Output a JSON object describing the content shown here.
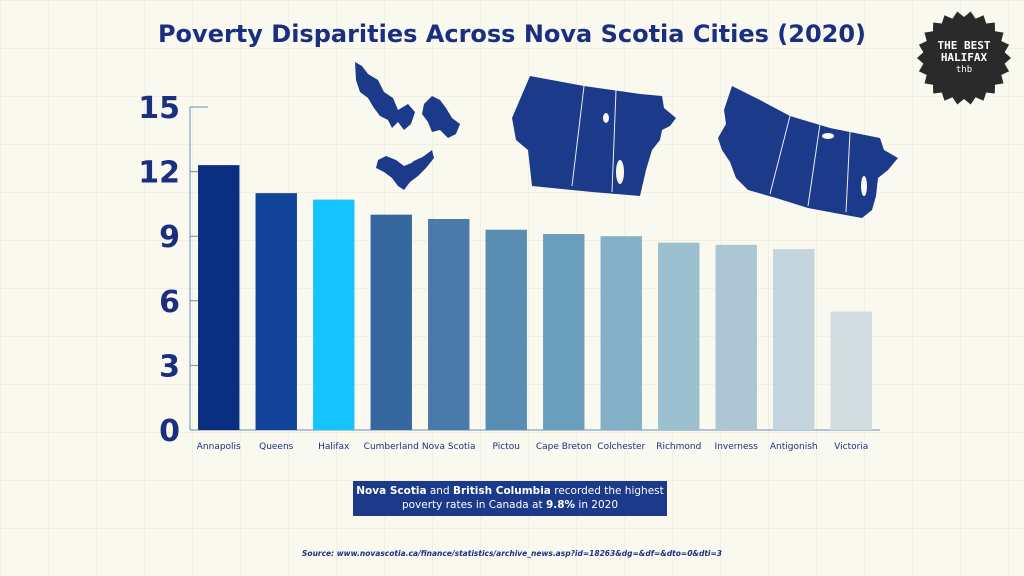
{
  "title": "Poverty Disparities Across Nova Scotia Cities (2020)",
  "logo": {
    "line1": "THE BEST",
    "line2": "HALIFAX",
    "mark": "thb"
  },
  "callout": {
    "part1": "Nova Scotia",
    "part2": " and ",
    "part3": "British Columbia",
    "part4": " recorded the highest",
    "part5": "poverty rates in Canada at ",
    "part6": "9.8%",
    "part7": " in 2020"
  },
  "source": "Source: www.novascotia.ca/finance/statistics/archive_news.asp?id=18263&dg=&df=&dto=0&dti=3",
  "icons": [
    "atlantic-provinces-map-icon",
    "prairie-provinces-map-icon",
    "western-canada-map-icon",
    "starburst-badge-icon"
  ],
  "chart_data": {
    "type": "bar",
    "title": "Poverty Disparities Across Nova Scotia Cities (2020)",
    "xlabel": "",
    "ylabel": "",
    "ylim": [
      0,
      15
    ],
    "yticks": [
      0,
      3,
      6,
      9,
      12,
      15
    ],
    "grid": false,
    "categories": [
      "Annapolis",
      "Queens",
      "Halifax",
      "Cumberland",
      "Nova Scotia",
      "Pictou",
      "Cape Breton",
      "Colchester",
      "Richmond",
      "Inverness",
      "Antigonish",
      "Victoria"
    ],
    "values": [
      12.3,
      11.0,
      10.7,
      10.0,
      9.8,
      9.3,
      9.1,
      9.0,
      8.7,
      8.6,
      8.4,
      5.5
    ],
    "colors": [
      "#0b2f80",
      "#12449a",
      "#14c3ff",
      "#36679f",
      "#4a7aaa",
      "#5a8db3",
      "#6a9ebd",
      "#84b1c7",
      "#9cc0d0",
      "#acc7d3",
      "#c4d4de",
      "#d2dde2"
    ]
  }
}
